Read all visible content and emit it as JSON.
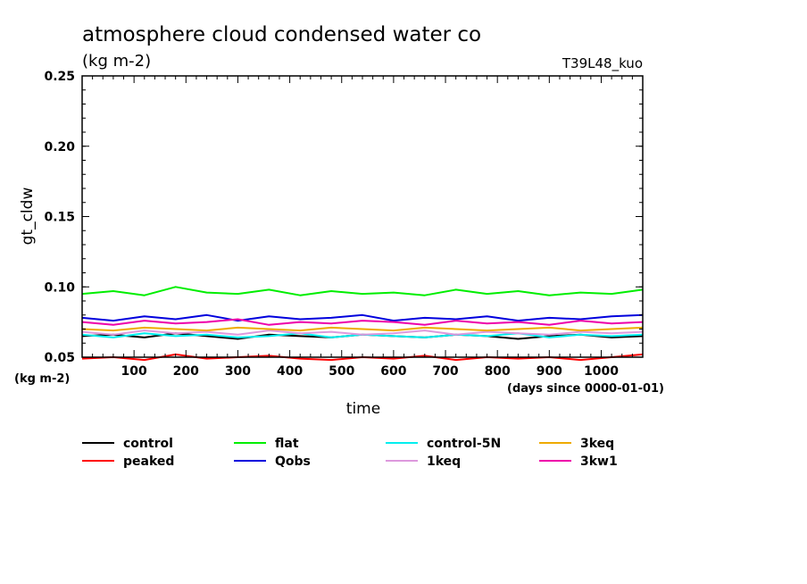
{
  "chart_data": {
    "type": "line",
    "title": "atmosphere cloud condensed water co",
    "subtitle": "(kg m-2)",
    "run_label": "T39L48_kuo",
    "xlabel": "time",
    "x_unit": "(days since 0000-01-01)",
    "ylabel": "gt_cldw",
    "y_unit": "(kg m-2)",
    "xlim": [
      0,
      1080
    ],
    "ylim": [
      0.05,
      0.25
    ],
    "x_ticks": [
      "100",
      "200",
      "300",
      "400",
      "500",
      "600",
      "700",
      "800",
      "900",
      "1000"
    ],
    "y_ticks": [
      "0.05",
      "0.10",
      "0.15",
      "0.20",
      "0.25"
    ],
    "grid": false,
    "legend_position": "bottom",
    "series": [
      {
        "name": "control",
        "color": "#000000",
        "x": [
          0,
          60,
          120,
          180,
          240,
          300,
          360,
          420,
          480,
          540,
          600,
          660,
          720,
          780,
          840,
          900,
          960,
          1020,
          1080
        ],
        "y": [
          0.065,
          0.066,
          0.064,
          0.067,
          0.065,
          0.063,
          0.066,
          0.065,
          0.064,
          0.066,
          0.065,
          0.064,
          0.066,
          0.065,
          0.063,
          0.065,
          0.066,
          0.064,
          0.065
        ]
      },
      {
        "name": "peaked",
        "color": "#ff0000",
        "x": [
          0,
          60,
          120,
          180,
          240,
          300,
          360,
          420,
          480,
          540,
          600,
          660,
          720,
          780,
          840,
          900,
          960,
          1020,
          1080
        ],
        "y": [
          0.049,
          0.05,
          0.048,
          0.052,
          0.049,
          0.05,
          0.051,
          0.049,
          0.048,
          0.05,
          0.049,
          0.051,
          0.048,
          0.05,
          0.049,
          0.05,
          0.048,
          0.05,
          0.052
        ]
      },
      {
        "name": "flat",
        "color": "#00ee00",
        "x": [
          0,
          60,
          120,
          180,
          240,
          300,
          360,
          420,
          480,
          540,
          600,
          660,
          720,
          780,
          840,
          900,
          960,
          1020,
          1080
        ],
        "y": [
          0.095,
          0.097,
          0.094,
          0.1,
          0.096,
          0.095,
          0.098,
          0.094,
          0.097,
          0.095,
          0.096,
          0.094,
          0.098,
          0.095,
          0.097,
          0.094,
          0.096,
          0.095,
          0.098
        ]
      },
      {
        "name": "Qobs",
        "color": "#0000dd",
        "x": [
          0,
          60,
          120,
          180,
          240,
          300,
          360,
          420,
          480,
          540,
          600,
          660,
          720,
          780,
          840,
          900,
          960,
          1020,
          1080
        ],
        "y": [
          0.078,
          0.076,
          0.079,
          0.077,
          0.08,
          0.076,
          0.079,
          0.077,
          0.078,
          0.08,
          0.076,
          0.078,
          0.077,
          0.079,
          0.076,
          0.078,
          0.077,
          0.079,
          0.08
        ]
      },
      {
        "name": "control-5N",
        "color": "#00eeee",
        "x": [
          0,
          60,
          120,
          180,
          240,
          300,
          360,
          420,
          480,
          540,
          600,
          660,
          720,
          780,
          840,
          900,
          960,
          1020,
          1080
        ],
        "y": [
          0.066,
          0.064,
          0.067,
          0.065,
          0.066,
          0.064,
          0.065,
          0.067,
          0.064,
          0.066,
          0.065,
          0.064,
          0.066,
          0.065,
          0.067,
          0.064,
          0.066,
          0.065,
          0.066
        ]
      },
      {
        "name": "1keq",
        "color": "#dd99dd",
        "x": [
          0,
          60,
          120,
          180,
          240,
          300,
          360,
          420,
          480,
          540,
          600,
          660,
          720,
          780,
          840,
          900,
          960,
          1020,
          1080
        ],
        "y": [
          0.068,
          0.066,
          0.069,
          0.067,
          0.068,
          0.066,
          0.069,
          0.067,
          0.068,
          0.066,
          0.067,
          0.069,
          0.066,
          0.068,
          0.067,
          0.066,
          0.068,
          0.067,
          0.068
        ]
      },
      {
        "name": "3keq",
        "color": "#eeaa00",
        "x": [
          0,
          60,
          120,
          180,
          240,
          300,
          360,
          420,
          480,
          540,
          600,
          660,
          720,
          780,
          840,
          900,
          960,
          1020,
          1080
        ],
        "y": [
          0.07,
          0.069,
          0.071,
          0.07,
          0.069,
          0.071,
          0.07,
          0.069,
          0.071,
          0.07,
          0.069,
          0.071,
          0.07,
          0.069,
          0.07,
          0.071,
          0.069,
          0.07,
          0.071
        ]
      },
      {
        "name": "3kw1",
        "color": "#ee00aa",
        "x": [
          0,
          60,
          120,
          180,
          240,
          300,
          360,
          420,
          480,
          540,
          600,
          660,
          720,
          780,
          840,
          900,
          960,
          1020,
          1080
        ],
        "y": [
          0.075,
          0.073,
          0.076,
          0.074,
          0.075,
          0.077,
          0.073,
          0.075,
          0.074,
          0.076,
          0.075,
          0.073,
          0.076,
          0.074,
          0.075,
          0.073,
          0.076,
          0.074,
          0.075
        ]
      }
    ]
  }
}
